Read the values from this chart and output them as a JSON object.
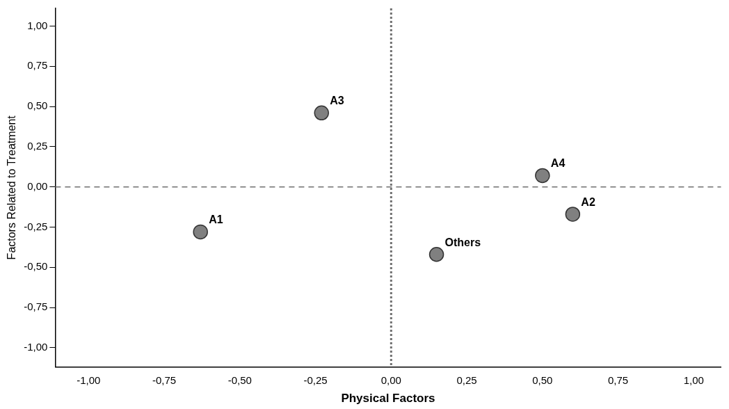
{
  "chart_data": {
    "type": "scatter",
    "xlabel": "Physical Factors",
    "ylabel": "Factors Related to Treatment",
    "x": [
      -0.63,
      0.6,
      -0.23,
      0.5,
      0.15
    ],
    "series": [
      {
        "color": "#808080",
        "values": [
          -0.28,
          -0.17,
          0.46,
          0.07,
          -0.42
        ]
      }
    ],
    "marker": "circle",
    "grid": false,
    "legend": false,
    "xlim": [
      -1.11,
      1.09
    ],
    "ylim": [
      -1.12,
      1.11
    ],
    "xticks": [
      {
        "value": -1,
        "label": "-1,00"
      },
      {
        "value": -0.75,
        "label": "-0,75"
      },
      {
        "value": -0.5,
        "label": "-0,50"
      },
      {
        "value": -0.25,
        "label": "-0,25"
      },
      {
        "value": 0,
        "label": "0,00"
      },
      {
        "value": 0.25,
        "label": "0,25"
      },
      {
        "value": 0.5,
        "label": "0,50"
      },
      {
        "value": 0.75,
        "label": "0,75"
      },
      {
        "value": 1,
        "label": "1,00"
      }
    ],
    "yticks": [
      {
        "value": -1,
        "label": "-1,00"
      },
      {
        "value": -0.75,
        "label": "-0,75"
      },
      {
        "value": -0.5,
        "label": "-0,50"
      },
      {
        "value": -0.25,
        "label": "-0,25"
      },
      {
        "value": 0,
        "label": "0,00"
      },
      {
        "value": 0.25,
        "label": "0,25"
      },
      {
        "value": 0.5,
        "label": "0,50"
      },
      {
        "value": 0.75,
        "label": "0,75"
      },
      {
        "value": 1,
        "label": "1,00"
      }
    ],
    "ref_lines": [
      {
        "axis": "x",
        "value": 0,
        "line_style": "dotted",
        "color": "#707070"
      },
      {
        "axis": "y",
        "value": 0,
        "line_style": "dashed",
        "color": "#707070"
      }
    ],
    "annotations": [
      {
        "text": "A1",
        "x": -0.63,
        "y": -0.28
      },
      {
        "text": "A2",
        "x": 0.6,
        "y": -0.17
      },
      {
        "text": "A3",
        "x": -0.23,
        "y": 0.46
      },
      {
        "text": "A4",
        "x": 0.5,
        "y": 0.07
      },
      {
        "text": "Others",
        "x": 0.15,
        "y": -0.42
      }
    ]
  }
}
